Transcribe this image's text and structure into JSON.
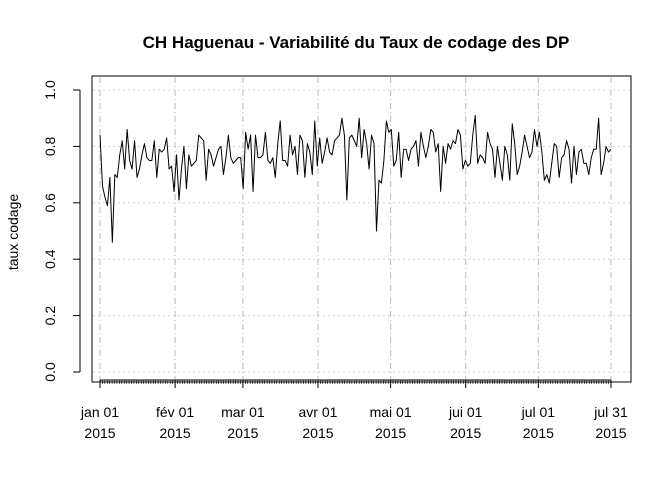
{
  "chart_data": {
    "type": "line",
    "title": "CH Haguenau  - Variabilité du Taux de codage des DP",
    "xlabel": "",
    "ylabel": "taux codage",
    "ylim": [
      0,
      1
    ],
    "y_ticks": [
      "0.0",
      "0.2",
      "0.4",
      "0.6",
      "0.8",
      "1.0"
    ],
    "x_range": [
      "2015-01-01",
      "2015-07-31"
    ],
    "x_ticks": [
      {
        "date": "2015-01-01",
        "line1": "jan 01",
        "line2": "2015"
      },
      {
        "date": "2015-02-01",
        "line1": "fév 01",
        "line2": "2015"
      },
      {
        "date": "2015-03-01",
        "line1": "mar 01",
        "line2": "2015"
      },
      {
        "date": "2015-04-01",
        "line1": "avr 01",
        "line2": "2015"
      },
      {
        "date": "2015-05-01",
        "line1": "mai 01",
        "line2": "2015"
      },
      {
        "date": "2015-06-01",
        "line1": "jui 01",
        "line2": "2015"
      },
      {
        "date": "2015-07-01",
        "line1": "jul 01",
        "line2": "2015"
      },
      {
        "date": "2015-07-31",
        "line1": "jul 31",
        "line2": "2015"
      }
    ],
    "grid": true,
    "legend": "none",
    "line_color": "#000000",
    "series": [
      {
        "values": [
          0.84,
          0.66,
          0.62,
          0.59,
          0.69,
          0.46,
          0.7,
          0.69,
          0.77,
          0.82,
          0.72,
          0.86,
          0.75,
          0.72,
          0.82,
          0.69,
          0.72,
          0.77,
          0.81,
          0.76,
          0.75,
          0.75,
          0.82,
          0.69,
          0.79,
          0.78,
          0.79,
          0.83,
          0.72,
          0.73,
          0.64,
          0.77,
          0.61,
          0.72,
          0.8,
          0.65,
          0.77,
          0.73,
          0.74,
          0.75,
          0.84,
          0.83,
          0.82,
          0.68,
          0.79,
          0.77,
          0.73,
          0.76,
          0.79,
          0.8,
          0.7,
          0.76,
          0.84,
          0.76,
          0.74,
          0.75,
          0.76,
          0.76,
          0.65,
          0.85,
          0.79,
          0.84,
          0.64,
          0.84,
          0.76,
          0.76,
          0.77,
          0.85,
          0.75,
          0.74,
          0.76,
          0.69,
          0.81,
          0.89,
          0.75,
          0.75,
          0.73,
          0.84,
          0.77,
          0.8,
          0.7,
          0.84,
          0.82,
          0.69,
          0.81,
          0.78,
          0.7,
          0.89,
          0.73,
          0.83,
          0.74,
          0.78,
          0.83,
          0.78,
          0.77,
          0.82,
          0.83,
          0.84,
          0.9,
          0.84,
          0.61,
          0.83,
          0.84,
          0.82,
          0.8,
          0.9,
          0.76,
          0.86,
          0.81,
          0.72,
          0.84,
          0.81,
          0.5,
          0.68,
          0.67,
          0.75,
          0.89,
          0.85,
          0.86,
          0.73,
          0.75,
          0.85,
          0.69,
          0.79,
          0.79,
          0.75,
          0.79,
          0.8,
          0.82,
          0.73,
          0.85,
          0.8,
          0.76,
          0.8,
          0.86,
          0.85,
          0.78,
          0.81,
          0.64,
          0.8,
          0.74,
          0.81,
          0.79,
          0.82,
          0.81,
          0.86,
          0.84,
          0.72,
          0.75,
          0.73,
          0.74,
          0.84,
          0.91,
          0.74,
          0.77,
          0.76,
          0.74,
          0.85,
          0.81,
          0.79,
          0.69,
          0.8,
          0.74,
          0.68,
          0.8,
          0.77,
          0.68,
          0.88,
          0.81,
          0.7,
          0.73,
          0.78,
          0.84,
          0.8,
          0.76,
          0.78,
          0.86,
          0.8,
          0.85,
          0.78,
          0.68,
          0.7,
          0.67,
          0.74,
          0.81,
          0.8,
          0.69,
          0.76,
          0.77,
          0.82,
          0.79,
          0.67,
          0.8,
          0.7,
          0.78,
          0.79,
          0.74,
          0.74,
          0.7,
          0.76,
          0.79,
          0.79,
          0.9,
          0.7,
          0.74,
          0.8,
          0.78,
          0.79
        ]
      }
    ]
  }
}
